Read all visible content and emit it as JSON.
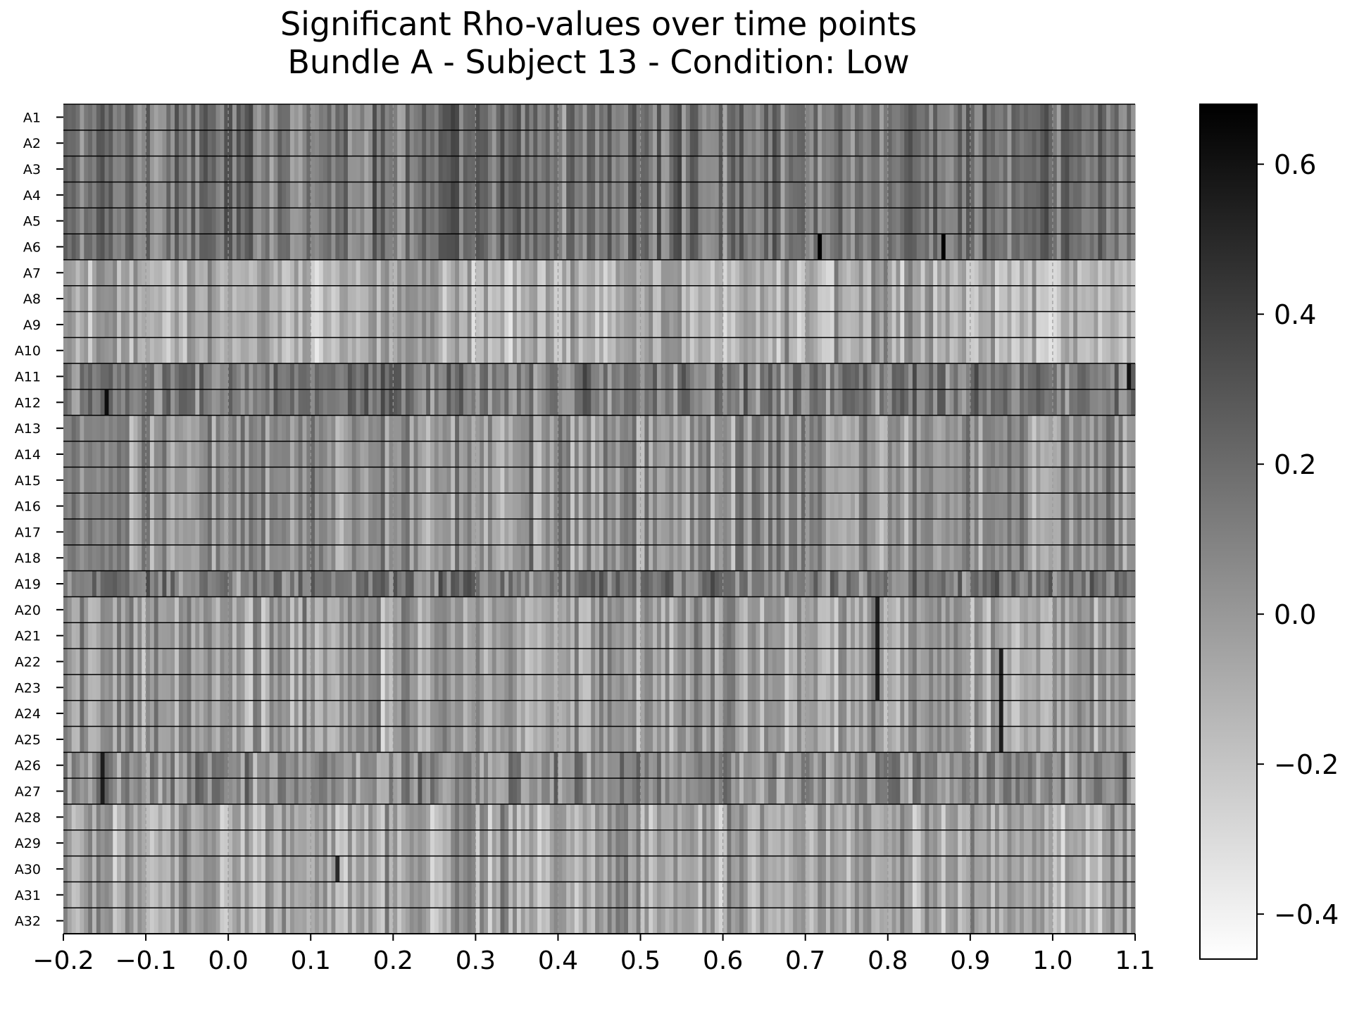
{
  "chart_data": {
    "type": "heatmap",
    "title": "Significant Rho-values over time points",
    "subtitle": "Bundle A - Subject 13 - Condition: Low",
    "xlabel": "",
    "ylabel": "",
    "rows": [
      "A1",
      "A2",
      "A3",
      "A4",
      "A5",
      "A6",
      "A7",
      "A8",
      "A9",
      "A10",
      "A11",
      "A12",
      "A13",
      "A14",
      "A15",
      "A16",
      "A17",
      "A18",
      "A19",
      "A20",
      "A21",
      "A22",
      "A23",
      "A24",
      "A25",
      "A26",
      "A27",
      "A28",
      "A29",
      "A30",
      "A31",
      "A32"
    ],
    "x_ticks": [
      "−0.2",
      "−0.1",
      "0.0",
      "0.1",
      "0.2",
      "0.3",
      "0.4",
      "0.5",
      "0.6",
      "0.7",
      "0.8",
      "0.9",
      "1.0",
      "1.1"
    ],
    "xlim": [
      -0.2,
      1.1
    ],
    "time_step": 0.005,
    "color_range": [
      -0.46,
      0.68
    ],
    "colorbar_ticks": [
      "−0.4",
      "−0.2",
      "0.0",
      "0.2",
      "0.4",
      "0.6"
    ],
    "colormap": {
      "low": "#ffffff",
      "high": "#000000"
    },
    "grid": "dashed vertical lines at x ticks",
    "row_groups": [
      {
        "rows": [
          "A1",
          "A2",
          "A3",
          "A4",
          "A5",
          "A6"
        ],
        "mean_rho": 0.15
      },
      {
        "rows": [
          "A7",
          "A8",
          "A9",
          "A10"
        ],
        "mean_rho": -0.1
      },
      {
        "rows": [
          "A11",
          "A12"
        ],
        "mean_rho": 0.12
      },
      {
        "rows": [
          "A13",
          "A14",
          "A15",
          "A16",
          "A17",
          "A18"
        ],
        "mean_rho": 0.02
      },
      {
        "rows": [
          "A19"
        ],
        "mean_rho": 0.13
      },
      {
        "rows": [
          "A20",
          "A21",
          "A22",
          "A23",
          "A24",
          "A25"
        ],
        "mean_rho": -0.04
      },
      {
        "rows": [
          "A26",
          "A27"
        ],
        "mean_rho": 0.05
      },
      {
        "rows": [
          "A28",
          "A29",
          "A30",
          "A31",
          "A32"
        ],
        "mean_rho": -0.06
      }
    ],
    "strong_values": [
      {
        "rows": [
          "A6"
        ],
        "x": 0.715,
        "rho": 0.68
      },
      {
        "rows": [
          "A6"
        ],
        "x": 0.865,
        "rho": 0.68
      },
      {
        "rows": [
          "A12"
        ],
        "x": -0.15,
        "rho": 0.62
      },
      {
        "rows": [
          "A11"
        ],
        "x": 1.09,
        "rho": 0.6
      },
      {
        "rows": [
          "A22",
          "A23",
          "A24",
          "A25"
        ],
        "x": 0.935,
        "rho": 0.55
      },
      {
        "rows": [
          "A20",
          "A21",
          "A22",
          "A23"
        ],
        "x": 0.785,
        "rho": 0.55
      },
      {
        "rows": [
          "A26",
          "A27"
        ],
        "x": -0.155,
        "rho": 0.55
      },
      {
        "rows": [
          "A30"
        ],
        "x": 0.13,
        "rho": 0.5
      }
    ]
  }
}
